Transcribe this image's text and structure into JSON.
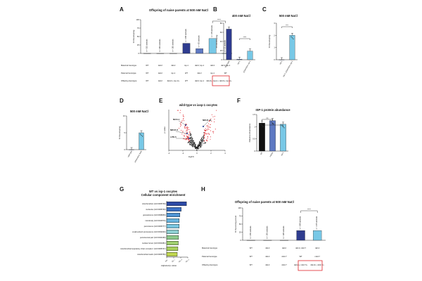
{
  "colors": {
    "dark_blue": "#2f3c8f",
    "mid_blue": "#5d78c2",
    "light_blue": "#78c8e6",
    "black": "#111111",
    "highlight_red": "#e0262c",
    "volcano_gray": "#222222",
    "volcano_red": "#e0262c",
    "g_bars": [
      "#2d4aa6",
      "#3a6fc4",
      "#4f94d4",
      "#67b3dd",
      "#79c6e0",
      "#8fd0d2",
      "#8cc98a",
      "#9fcf6f",
      "#a9d05e",
      "#c1d84f",
      "#d6de44",
      "#e6e25a"
    ]
  },
  "panels": {
    "a": {
      "label": "A",
      "title": "Offspring of naive parents at 500 mM NaCl",
      "rows": [
        "Maternal Genotype",
        "Paternal Genotype",
        "Offspring Genotype"
      ],
      "significance": "****"
    },
    "b": {
      "label": "B",
      "title": "400 mM NaCl",
      "significance": "****"
    },
    "c": {
      "label": "C",
      "title": "500 mM NaCl",
      "significance": "***"
    },
    "d": {
      "label": "D",
      "title": "500 mM NaCl"
    },
    "e": {
      "label": "E",
      "title": "wild-type vs iasp-1 oocytes"
    },
    "f": {
      "label": "F",
      "title": "ISP-1 protein abundance",
      "significance": "ns"
    },
    "g": {
      "label": "G",
      "title_line1": "WT vs isp-1 oocytes",
      "title_line2": "Cellular component enrichment"
    },
    "h": {
      "label": "H",
      "title": "Offspring of naive parents at 500 mM NaCl",
      "rows": [
        "Maternal Genotype",
        "Paternal Genotype",
        "Offspring Genotype"
      ],
      "significance": "****"
    }
  },
  "chart_data": [
    {
      "panel": "A",
      "type": "bar",
      "ylabel": "% Developing",
      "ylim": [
        0,
        100
      ],
      "yticks": [
        0,
        25,
        50,
        75,
        100
      ],
      "bar_annotations": [
        "n = 352 animals",
        "n = 443 animals",
        "n = 182 animals",
        "n = 158 animals",
        "n = 63 animals",
        "n = 28 animals",
        "n = 21 animals"
      ],
      "categories": [
        "1",
        "2",
        "3",
        "4",
        "5",
        "6",
        "7"
      ],
      "values": [
        0,
        0,
        0,
        30,
        14,
        44,
        0
      ],
      "genotypes": {
        "maternal": [
          "WT",
          "daf-2",
          "daf-2",
          "isp-1",
          "daf-2; isp-1",
          "daf-2",
          "daf-2; isp-1"
        ],
        "paternal": [
          "WT",
          "daf-2",
          "isp-1",
          "WT",
          "daf-2",
          "isp-1",
          "WT"
        ],
        "offspring": [
          "WT",
          "daf-2",
          "daf-2/+; isp-1/+",
          "WT",
          "daf-2; isp-1",
          "daf-2/+; isp-1/+",
          "daf-2/+; isp-1/+"
        ]
      }
    },
    {
      "panel": "B",
      "type": "bar",
      "ylabel": "% Developing",
      "ylim": [
        0,
        80
      ],
      "yticks": [
        0,
        20,
        40,
        60,
        80
      ],
      "categories": [
        "Wild-type",
        "isp-1",
        "pGermline::isp-1"
      ],
      "values": [
        67,
        1,
        19
      ]
    },
    {
      "panel": "C",
      "type": "bar",
      "ylabel": "% Developing",
      "ylim": [
        0,
        3
      ],
      "yticks": [
        0,
        1,
        2,
        3
      ],
      "categories": [
        "isp-1",
        "isp-1; pGermline::isp-1"
      ],
      "values": [
        0,
        2
      ]
    },
    {
      "panel": "D",
      "type": "bar",
      "ylabel": "% Developing",
      "ylim": [
        0,
        10
      ],
      "yticks": [
        0,
        5,
        10
      ],
      "categories": [
        "wild-type",
        "pGermline::AOX"
      ],
      "values": [
        0,
        5
      ]
    },
    {
      "panel": "E",
      "type": "scatter",
      "xlabel": "logFC",
      "ylabel": "p value",
      "xlim": [
        -4,
        4
      ],
      "xticks": [
        -4,
        -2,
        0,
        2,
        4
      ],
      "labels": [
        "NUO-1",
        "NDUF-11",
        "NDUF-6",
        "LPD-5"
      ]
    },
    {
      "panel": "F",
      "type": "bar",
      "ylabel": "Relative Abundance",
      "ylim": [
        0,
        1.5
      ],
      "yticks": [
        0.0,
        0.5,
        1.0,
        1.5
      ],
      "categories": [
        "WT",
        "mAOX",
        "isp-1"
      ],
      "values": [
        1.15,
        1.25,
        1.1
      ]
    },
    {
      "panel": "G",
      "type": "bar",
      "orientation": "horizontal",
      "xlabel": "Adjusted p value",
      "xticks": [
        "10⁰",
        "10⁻⁵",
        "10⁻¹⁰",
        "10⁻¹⁵"
      ],
      "categories": [
        "mitochondrion (GO:0005739)",
        "nucleolus (GO:0005730)",
        "granulocome (GO:0098656)",
        "microbody (GO:0042579)",
        "peroxisome (GO:0005777)",
        "small-subunit processome (GO:0032040)",
        "peroxisomal part (GO:0044439)",
        "nuclear lumen (GO:0031981)",
        "mitochondrial respiratory chain complex I (GO:0005747)",
        "mitochondrial matrix (GO:0005759)"
      ],
      "values": [
        15,
        11,
        10,
        9.5,
        9.5,
        9,
        9,
        8.8,
        8.5,
        8
      ]
    },
    {
      "panel": "H",
      "type": "bar",
      "ylabel": "% Surviving arrest",
      "ylim": [
        0,
        100
      ],
      "yticks": [
        0,
        25,
        50,
        75,
        100
      ],
      "bar_annotations": [
        "n = 209 animals",
        "n = 193 animals",
        "n = 128 animals",
        "n = 268 animals",
        "n = 215 animals"
      ],
      "categories": [
        "1",
        "2",
        "3",
        "4",
        "5"
      ],
      "values": [
        0,
        0,
        0,
        30,
        30
      ],
      "genotypes": {
        "maternal": [
          "WT",
          "daf-2",
          "daf-2",
          "daf-2; nduf-7",
          "daf-2"
        ],
        "paternal": [
          "WT",
          "daf-2",
          "nduf-7",
          "WT",
          "nduf-7"
        ],
        "offspring": [
          "WT",
          "daf-2",
          "nduf-7",
          "daf-2/+; nduf-7/+",
          "daf-2/+; nduf-7/+"
        ]
      }
    }
  ]
}
